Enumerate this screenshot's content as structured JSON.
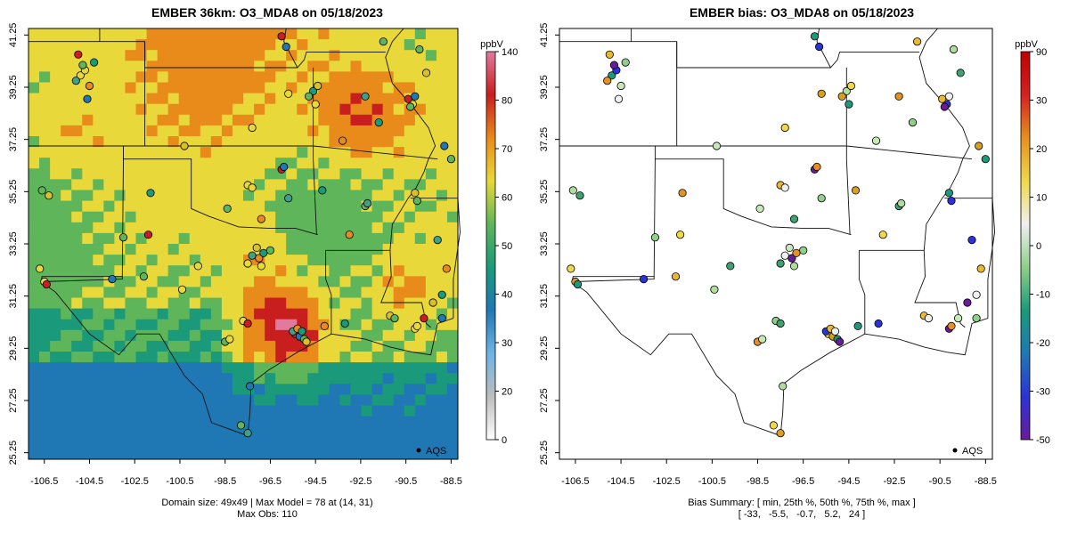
{
  "left": {
    "title": "EMBER 36km: O3_MDA8 on 05/18/2023",
    "subtitle_line1": "Domain size: 49x49 | Max Model = 78 at (14, 31)",
    "subtitle_line2": "Max Obs: 110",
    "legend_label": "AQS",
    "colorbar": {
      "unit": "ppbV",
      "ticks": [
        "0",
        "20",
        "30",
        "40",
        "50",
        "60",
        "70",
        "80",
        "140"
      ],
      "colors": [
        "#ffffff",
        "#bdbdbd",
        "#6fb3e6",
        "#1f78b4",
        "#1a9a7a",
        "#5fb55a",
        "#e8d83a",
        "#e88b1a",
        "#c81e1e",
        "#e07a9e"
      ]
    }
  },
  "right": {
    "title": "EMBER bias: O3_MDA8 on 05/18/2023",
    "subtitle_line1": "Bias Summary: [ min, 25th %, 50th %, 75th %, max ]",
    "subtitle_line2": "[ -33,   -5.5,   -0.7,   5.2,   24 ]",
    "legend_label": "AQS",
    "colorbar": {
      "unit": "ppbV",
      "ticks": [
        "-50",
        "-30",
        "-20",
        "-10",
        "0",
        "10",
        "20",
        "30",
        "90"
      ],
      "colors": [
        "#6a1b9a",
        "#2b33d6",
        "#1f78b4",
        "#1a9a7a",
        "#8fcf8a",
        "#f0f0f0",
        "#f0d84a",
        "#e69020",
        "#d62020",
        "#c00000"
      ]
    }
  },
  "axes": {
    "x_ticks": [
      "-106.5",
      "-104.5",
      "-102.5",
      "-100.5",
      "-98.5",
      "-96.5",
      "-94.5",
      "-92.5",
      "-90.5",
      "-88.5"
    ],
    "y_ticks": [
      "41.25",
      "39.25",
      "37.25",
      "35.25",
      "33.25",
      "31.25",
      "29.25",
      "27.25",
      "25.25"
    ],
    "xlim": [
      -107.2,
      -88.2
    ],
    "ylim": [
      25.0,
      41.5
    ]
  }
}
